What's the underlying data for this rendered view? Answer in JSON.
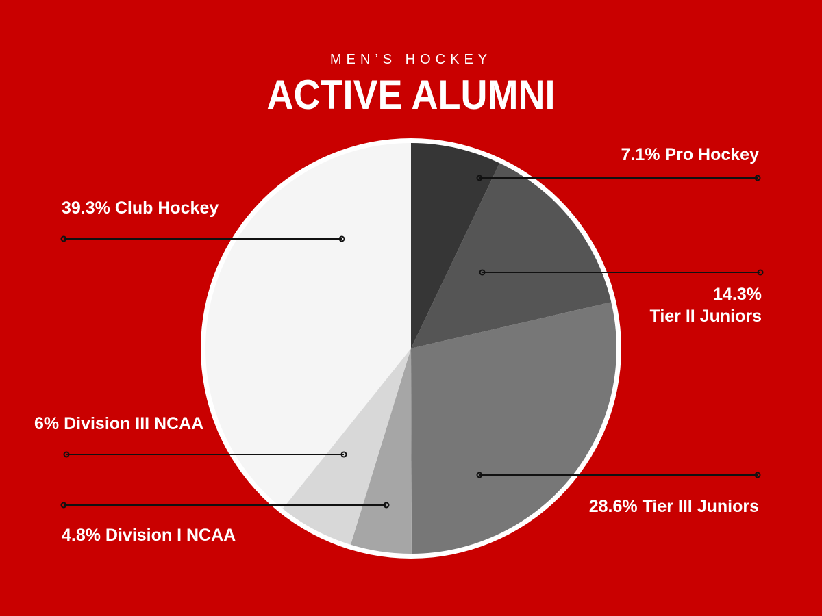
{
  "colors": {
    "background": "#c90000",
    "text": "#ffffff",
    "leader_line": "#111111",
    "pie_border": "#ffffff"
  },
  "header": {
    "subtitle": "MEN’S HOCKEY",
    "title": "ACTIVE ALUMNI"
  },
  "chart_data": {
    "type": "pie",
    "title": "ACTIVE ALUMNI",
    "subtitle": "MEN’S HOCKEY",
    "legend": "none",
    "slices": [
      {
        "category": "Pro Hockey",
        "value": 7.1,
        "label": "7.1% Pro Hockey",
        "color": "#363636"
      },
      {
        "category": "Tier II Juniors",
        "value": 14.3,
        "label": [
          "14.3%",
          "Tier II Juniors"
        ],
        "color": "#555555"
      },
      {
        "category": "Tier III Juniors",
        "value": 28.6,
        "label": "28.6% Tier III Juniors",
        "color": "#777777"
      },
      {
        "category": "Division I NCAA",
        "value": 4.8,
        "label": "4.8% Division I NCAA",
        "color": "#a6a6a6"
      },
      {
        "category": "Division III NCAA",
        "value": 6,
        "label": "6% Division III NCAA",
        "color": "#d8d8d8"
      },
      {
        "category": "Club Hockey",
        "value": 39.3,
        "label": "39.3% Club Hockey",
        "color": "#f5f5f5"
      }
    ]
  }
}
